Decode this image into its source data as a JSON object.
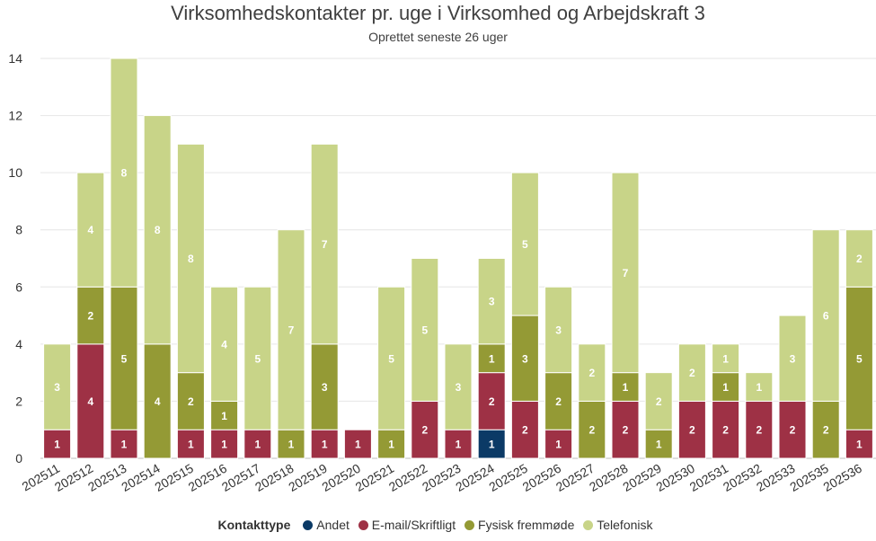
{
  "chart_data": {
    "type": "bar",
    "stacked": true,
    "title": "Virksomhedskontakter pr. uge i Virksomhed og Arbejdskraft 3",
    "subtitle": "Oprettet seneste 26 uger",
    "categories": [
      "202511",
      "202512",
      "202513",
      "202514",
      "202515",
      "202516",
      "202517",
      "202518",
      "202519",
      "202520",
      "202521",
      "202522",
      "202523",
      "202524",
      "202525",
      "202526",
      "202527",
      "202528",
      "202529",
      "202530",
      "202531",
      "202532",
      "202533",
      "202535",
      "202536"
    ],
    "ylim": [
      0,
      14
    ],
    "yticks": [
      0,
      2,
      4,
      6,
      8,
      10,
      12,
      14
    ],
    "grid": true,
    "legend_title": "Kontakttype",
    "legend_position": "bottom",
    "series": [
      {
        "name": "Andet",
        "color": "#0b3a66",
        "values": [
          0,
          0,
          0,
          0,
          0,
          0,
          0,
          0,
          0,
          0,
          0,
          0,
          0,
          1,
          0,
          0,
          0,
          0,
          0,
          0,
          0,
          0,
          0,
          0,
          0
        ]
      },
      {
        "name": "E-mail/Skriftligt",
        "color": "#9e3145",
        "values": [
          1,
          4,
          1,
          0,
          1,
          1,
          1,
          0,
          1,
          1,
          0,
          2,
          1,
          2,
          2,
          1,
          0,
          2,
          0,
          2,
          2,
          2,
          2,
          0,
          1
        ]
      },
      {
        "name": "Fysisk fremmøde",
        "color": "#949a35",
        "values": [
          0,
          2,
          5,
          4,
          2,
          1,
          0,
          1,
          3,
          0,
          1,
          0,
          0,
          1,
          3,
          2,
          2,
          1,
          1,
          0,
          1,
          0,
          0,
          2,
          5
        ]
      },
      {
        "name": "Telefonisk",
        "color": "#c8d488",
        "values": [
          3,
          4,
          8,
          8,
          8,
          4,
          5,
          7,
          7,
          0,
          5,
          5,
          3,
          3,
          5,
          3,
          2,
          7,
          2,
          2,
          1,
          1,
          3,
          6,
          2
        ]
      }
    ]
  }
}
